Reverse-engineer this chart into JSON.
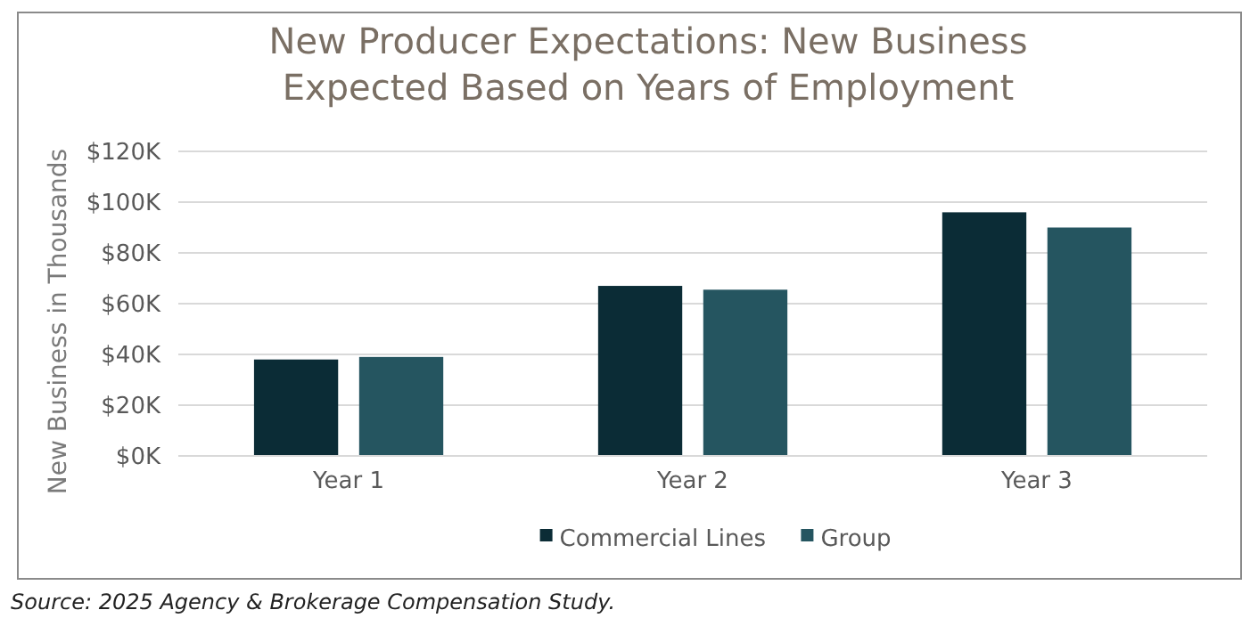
{
  "chart_data": {
    "type": "bar",
    "title": "New Producer Expectations: New Business Expected Based on Years of Employment",
    "ylabel": "New Business in Thousands",
    "categories": [
      "Year 1",
      "Year 2",
      "Year 3"
    ],
    "series": [
      {
        "name": "Commercial Lines",
        "color": "#0b2c36",
        "values": [
          38,
          67,
          96
        ]
      },
      {
        "name": "Group",
        "color": "#255560",
        "values": [
          39,
          65.5,
          90
        ]
      }
    ],
    "ylim": [
      0,
      120
    ],
    "yticks": [
      {
        "value": 0,
        "label": "$0K"
      },
      {
        "value": 20,
        "label": "$20K"
      },
      {
        "value": 40,
        "label": "$40K"
      },
      {
        "value": 60,
        "label": "$60K"
      },
      {
        "value": 80,
        "label": "$80K"
      },
      {
        "value": 100,
        "label": "$100K"
      },
      {
        "value": 120,
        "label": "$120K"
      }
    ],
    "grid": "y",
    "legend": "bottom",
    "annotations": [
      "Source: 2025 Agency & Brokerage Compensation Study."
    ]
  }
}
